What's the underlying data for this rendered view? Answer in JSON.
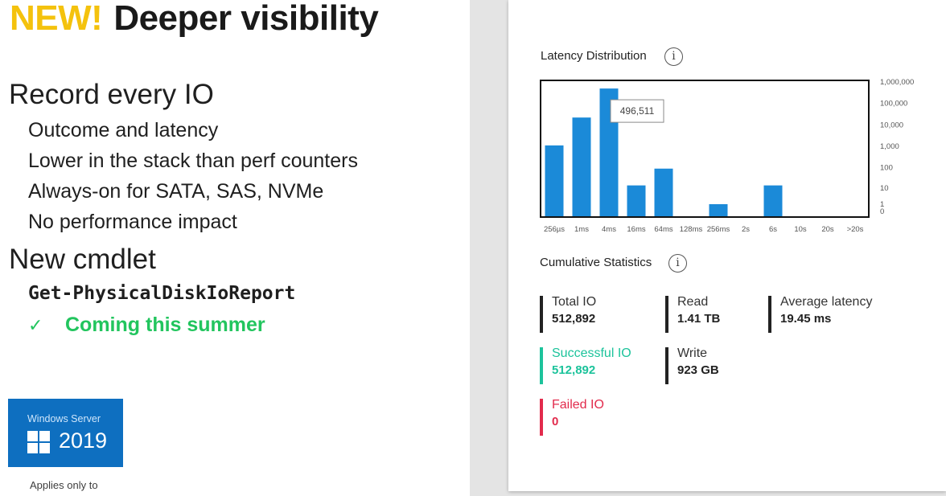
{
  "slide": {
    "title_new": "NEW!",
    "title_rest": "Deeper visibility",
    "heading1": "Record every IO",
    "bullets": [
      "Outcome and latency",
      "Lower in the stack than perf counters",
      "Always-on for SATA, SAS, NVMe",
      "No performance impact"
    ],
    "heading2": "New cmdlet",
    "cmdlet": "Get-PhysicalDiskIoReport",
    "check_mark": "✓",
    "coming": "Coming this summer",
    "badge": {
      "line1": "Windows Server",
      "year": "2019",
      "color": "#0e6fc0"
    },
    "applies": "Applies only to",
    "colors": {
      "new": "#f4c20d",
      "check": "#22c55e"
    }
  },
  "panel": {
    "latency_title": "Latency Distribution",
    "cumulative_title": "Cumulative Statistics",
    "info_icon": "i",
    "stats": {
      "total_io": {
        "label": "Total IO",
        "value": "512,892"
      },
      "read": {
        "label": "Read",
        "value": "1.41 TB"
      },
      "avg_latency": {
        "label": "Average latency",
        "value": "19.45 ms"
      },
      "successful_io": {
        "label": "Successful IO",
        "value": "512,892"
      },
      "write": {
        "label": "Write",
        "value": "923 GB"
      },
      "failed_io": {
        "label": "Failed IO",
        "value": "0"
      }
    },
    "colors": {
      "success": "#1cc39b",
      "failed": "#e22b4c",
      "bar": "#1b8ad8"
    }
  },
  "chart_data": {
    "type": "bar",
    "title": "Latency Distribution",
    "categories": [
      "256µs",
      "1ms",
      "4ms",
      "16ms",
      "64ms",
      "128ms",
      "256ms",
      "2s",
      "6s",
      "10s",
      "20s",
      ">20s"
    ],
    "values": [
      1100,
      22000,
      496511,
      14,
      90,
      0,
      1,
      0,
      14,
      0,
      0,
      0
    ],
    "y_scale": "log",
    "y_ticks": [
      "0",
      "1",
      "10",
      "100",
      "1,000",
      "10,000",
      "100,000",
      "1,000,000"
    ],
    "tooltip": "496,511",
    "grid": false
  }
}
